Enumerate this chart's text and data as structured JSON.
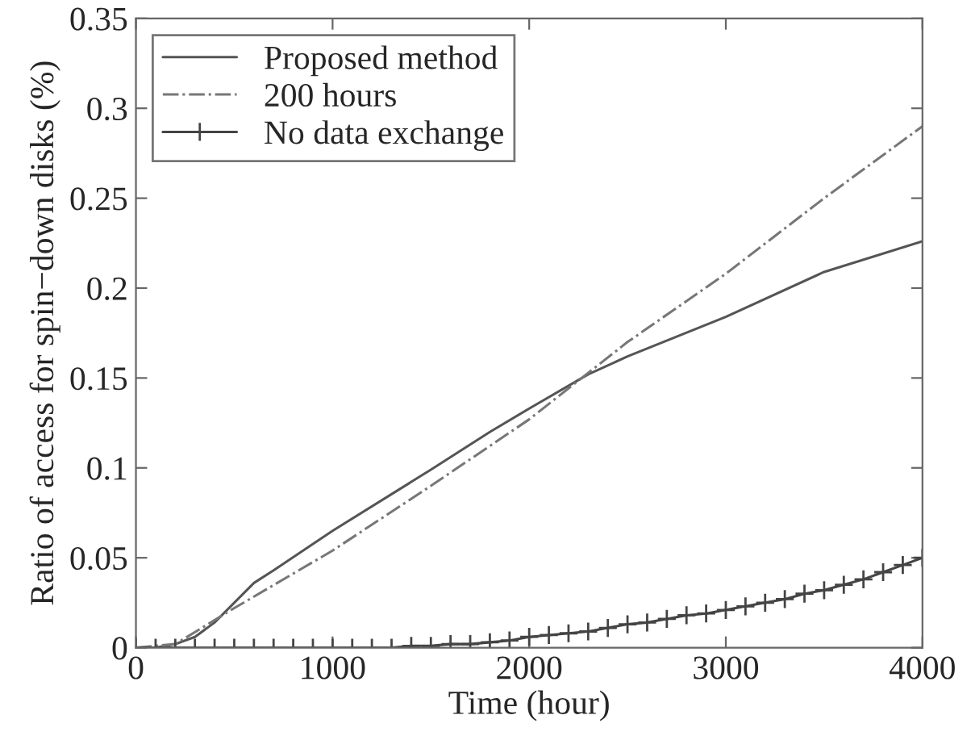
{
  "chart_data": {
    "type": "line",
    "xlabel": "Time (hour)",
    "ylabel": "Ratio of access for spin−down disks (%)",
    "xlim": [
      0,
      4000
    ],
    "ylim": [
      0,
      0.35
    ],
    "xticks": [
      0,
      1000,
      2000,
      3000,
      4000
    ],
    "yticks": [
      0,
      0.05,
      0.1,
      0.15,
      0.2,
      0.25,
      0.3,
      0.35
    ],
    "grid": false,
    "legend": "top left",
    "series": [
      {
        "name": "Proposed method",
        "color": "#555555",
        "line_style": "solid",
        "marker": "none",
        "x": [
          0,
          100,
          200,
          300,
          400,
          600,
          700,
          1000,
          1500,
          1800,
          2000,
          2300,
          2500,
          3000,
          3500,
          4000
        ],
        "values": [
          0,
          0,
          0.002,
          0.006,
          0.014,
          0.036,
          0.043,
          0.065,
          0.099,
          0.12,
          0.133,
          0.152,
          0.162,
          0.184,
          0.209,
          0.226
        ]
      },
      {
        "name": "200 hours",
        "color": "#777777",
        "line_style": "dashdot",
        "marker": "none",
        "x": [
          0,
          200,
          500,
          1000,
          1500,
          2000,
          2500,
          3000,
          3500,
          4000
        ],
        "values": [
          0,
          0.002,
          0.022,
          0.054,
          0.09,
          0.127,
          0.17,
          0.208,
          0.25,
          0.29
        ]
      },
      {
        "name": "No data exchange",
        "color": "#444444",
        "line_style": "solid",
        "marker": "cross",
        "x": [
          0,
          100,
          200,
          300,
          400,
          500,
          600,
          700,
          800,
          900,
          1000,
          1100,
          1200,
          1300,
          1400,
          1500,
          1600,
          1700,
          1800,
          1900,
          2000,
          2100,
          2200,
          2300,
          2400,
          2500,
          2600,
          2700,
          2800,
          2900,
          3000,
          3100,
          3200,
          3300,
          3400,
          3500,
          3600,
          3700,
          3800,
          3900,
          4000
        ],
        "values": [
          0,
          0,
          0,
          0,
          0,
          0,
          0,
          0,
          0,
          0,
          0,
          0,
          0,
          0,
          0.001,
          0.001,
          0.002,
          0.002,
          0.003,
          0.004,
          0.006,
          0.007,
          0.008,
          0.009,
          0.011,
          0.013,
          0.014,
          0.016,
          0.018,
          0.019,
          0.021,
          0.023,
          0.025,
          0.027,
          0.03,
          0.032,
          0.035,
          0.038,
          0.042,
          0.046,
          0.05
        ]
      }
    ]
  }
}
